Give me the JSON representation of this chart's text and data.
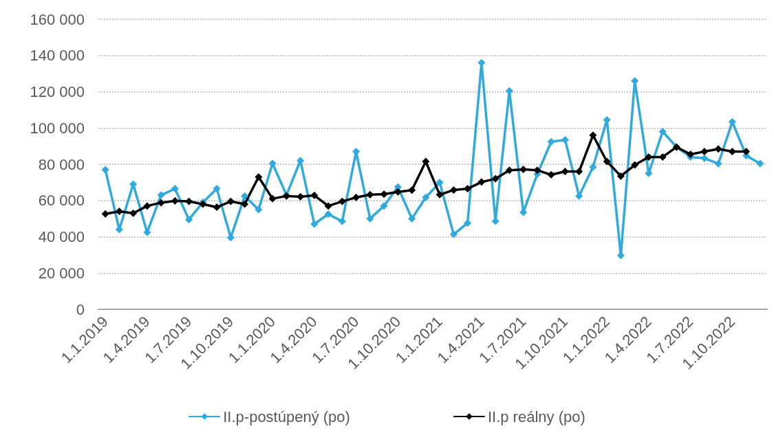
{
  "chart_data": {
    "type": "line",
    "categories": [
      "1.1.2019",
      null,
      null,
      "1.4.2019",
      null,
      null,
      "1.7.2019",
      null,
      null,
      "1.10.2019",
      null,
      null,
      "1.1.2020",
      null,
      null,
      "1.4.2020",
      null,
      null,
      "1.7.2020",
      null,
      null,
      "1.10.2020",
      null,
      null,
      "1.1.2021",
      null,
      null,
      "1.4.2021",
      null,
      null,
      "1.7.2021",
      null,
      null,
      "1.10.2021",
      null,
      null,
      "1.1.2022",
      null,
      null,
      "1.4.2022",
      null,
      null,
      "1.7.2022",
      null,
      null,
      "1.10.2022",
      null,
      null
    ],
    "series": [
      {
        "name": "II.p-postúpený (po)",
        "color": "#2eaadf",
        "values": [
          77000,
          44000,
          69000,
          42500,
          63000,
          66500,
          49500,
          59000,
          66500,
          39500,
          62500,
          55000,
          80500,
          63000,
          82000,
          47000,
          52500,
          48500,
          87000,
          50000,
          57000,
          67500,
          50000,
          61700,
          70000,
          41300,
          47600,
          136000,
          48600,
          120500,
          53500,
          74500,
          92400,
          93500,
          62500,
          78500,
          104500,
          29700,
          126000,
          75000,
          98000,
          89500,
          84000,
          83300,
          80300,
          103400,
          84700,
          80400
        ]
      },
      {
        "name": "II.p reálny (po)",
        "color": "#000000",
        "values": [
          52600,
          54000,
          53000,
          57000,
          58800,
          59800,
          59500,
          58000,
          56300,
          59500,
          58000,
          73000,
          61000,
          62500,
          62100,
          62800,
          57000,
          59500,
          61700,
          63200,
          63500,
          64700,
          65700,
          81500,
          63200,
          65800,
          66500,
          70200,
          72000,
          76700,
          77200,
          76700,
          74200,
          76000,
          76000,
          96000,
          81500,
          73500,
          79600,
          84000,
          84000,
          89500,
          85500,
          87000,
          88400,
          87000,
          87000,
          null
        ]
      }
    ],
    "ylim": [
      0,
      160000
    ],
    "yticks": [
      {
        "value": 0,
        "label": "0"
      },
      {
        "value": 20000,
        "label": "20 000"
      },
      {
        "value": 40000,
        "label": "40 000"
      },
      {
        "value": 60000,
        "label": "60 000"
      },
      {
        "value": 80000,
        "label": "80 000"
      },
      {
        "value": 100000,
        "label": "100 000"
      },
      {
        "value": 120000,
        "label": "120 000"
      },
      {
        "value": 140000,
        "label": "140 000"
      },
      {
        "value": 160000,
        "label": "160 000"
      }
    ],
    "grid": "y",
    "legend": "bottom",
    "marker": "diamond",
    "line_style": "solid"
  }
}
